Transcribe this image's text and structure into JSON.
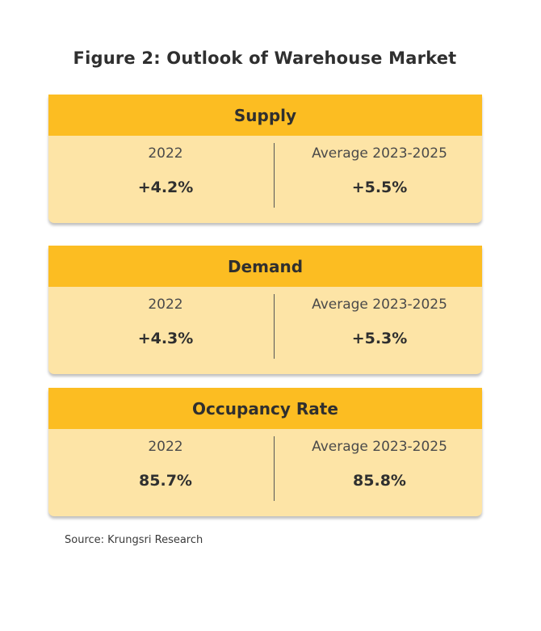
{
  "title": "Figure 2:  Outlook of Warehouse Market",
  "panels": [
    {
      "header": "Supply",
      "left_label": "2022",
      "left_value": "+4.2%",
      "right_label": "Average 2023-2025",
      "right_value": "+5.5%"
    },
    {
      "header": "Demand",
      "left_label": "2022",
      "left_value": "+4.3%",
      "right_label": "Average 2023-2025",
      "right_value": "+5.3%"
    },
    {
      "header": "Occupancy Rate",
      "left_label": "2022",
      "left_value": "85.7%",
      "right_label": "Average 2023-2025",
      "right_value": "85.8%"
    }
  ],
  "source": "Source: Krungsri Research",
  "colors": {
    "header": "#fcbd22",
    "body": "#fde4a6",
    "text": "#2f2f2f"
  }
}
